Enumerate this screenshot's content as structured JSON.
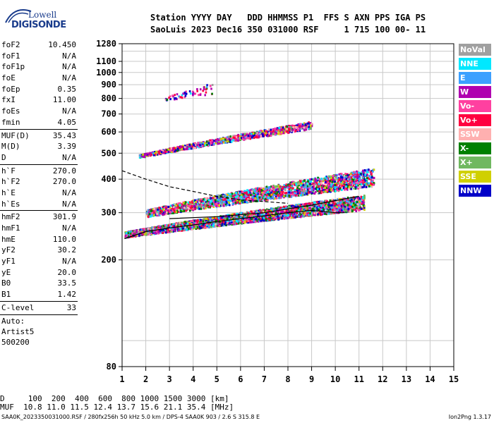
{
  "logo": {
    "line1": "Lowell",
    "line2": "DIGISONDE"
  },
  "header": {
    "line1": "Station YYYY DAY   DDD HHMMSS P1  FFS S AXN PPS IGA PS",
    "line2": "SaoLuis 2023 Dec16 350 031000 RSF     1 715 100 00- 11"
  },
  "params_group1": [
    {
      "name": "foF2",
      "value": "10.450"
    },
    {
      "name": "foF1",
      "value": "N/A"
    },
    {
      "name": "foF1p",
      "value": "N/A"
    },
    {
      "name": "foE",
      "value": "N/A"
    },
    {
      "name": "foEp",
      "value": "0.35"
    },
    {
      "name": "fxI",
      "value": "11.00"
    },
    {
      "name": "foEs",
      "value": "N/A"
    },
    {
      "name": "fmin",
      "value": "4.05"
    }
  ],
  "params_group2": [
    {
      "name": "MUF(D)",
      "value": "35.43"
    },
    {
      "name": "M(D)",
      "value": "3.39"
    },
    {
      "name": "D",
      "value": "N/A"
    }
  ],
  "params_group3": [
    {
      "name": "h`F",
      "value": "270.0"
    },
    {
      "name": "h`F2",
      "value": "270.0"
    },
    {
      "name": "h`E",
      "value": "N/A"
    },
    {
      "name": "h`Es",
      "value": "N/A"
    }
  ],
  "params_group4": [
    {
      "name": "hmF2",
      "value": "301.9"
    },
    {
      "name": "hmF1",
      "value": "N/A"
    },
    {
      "name": "hmE",
      "value": "110.0"
    },
    {
      "name": "yF2",
      "value": "30.2"
    },
    {
      "name": "yF1",
      "value": "N/A"
    },
    {
      "name": "yE",
      "value": "20.0"
    },
    {
      "name": "B0",
      "value": "33.5"
    },
    {
      "name": "B1",
      "value": "1.42"
    }
  ],
  "params_group5": [
    {
      "name": "C-level",
      "value": "33"
    }
  ],
  "autoscale": {
    "line1": "Auto:",
    "line2": "Artist5",
    "line3": "500200"
  },
  "legend": [
    {
      "label": "NoVal",
      "color": "#a0a0a0"
    },
    {
      "label": "NNE",
      "color": "#00e8ff"
    },
    {
      "label": "E",
      "color": "#3ca0ff"
    },
    {
      "label": "W",
      "color": "#b000b0"
    },
    {
      "label": "Vo-",
      "color": "#ff40a0"
    },
    {
      "label": "Vo+",
      "color": "#ff0040"
    },
    {
      "label": "SSW",
      "color": "#ffb0b0"
    },
    {
      "label": "X-",
      "color": "#008000"
    },
    {
      "label": "X+",
      "color": "#70b860"
    },
    {
      "label": "SSE",
      "color": "#d0d000"
    },
    {
      "label": "NNW",
      "color": "#0000c8"
    }
  ],
  "footer": {
    "line1": "D     100  200  400  600  800 1000 1500 3000 [km]",
    "line2": "MUF  10.8 11.0 11.5 12.4 13.7 15.6 21.1 35.4 [MHz]",
    "line3": "SAA0K_2023350031000.RSF / 280fx256h 50 kHz 5.0 km / DPS-4 SAA0K 903 / 2.6 S 315.8 E",
    "line4": "Ion2Png 1.3.17"
  },
  "chart_data": {
    "type": "scatter",
    "title": "",
    "xlabel": "",
    "ylabel": "",
    "xlim": [
      1,
      15
    ],
    "ylim": [
      80,
      1280
    ],
    "yscale": "log",
    "grid": true,
    "x_ticks": [
      "1",
      "2",
      "3",
      "4",
      "5",
      "6",
      "7",
      "8",
      "9",
      "10",
      "11",
      "12",
      "13",
      "14",
      "15"
    ],
    "y_ticks": [
      {
        "value": 80,
        "label": "80"
      },
      {
        "value": 200,
        "label": "200"
      },
      {
        "value": 300,
        "label": "300"
      },
      {
        "value": 400,
        "label": "400"
      },
      {
        "value": 500,
        "label": "500"
      },
      {
        "value": 600,
        "label": "600"
      },
      {
        "value": 700,
        "label": "700"
      },
      {
        "value": 800,
        "label": "800"
      },
      {
        "value": 900,
        "label": "900"
      },
      {
        "value": 1000,
        "label": "1000"
      },
      {
        "value": 1100,
        "label": "1100"
      },
      {
        "value": 1280,
        "label": "1280"
      }
    ],
    "y_gridlines": [
      100,
      200,
      300,
      400,
      500,
      600,
      700,
      800,
      900,
      1000,
      1100,
      1200
    ],
    "o_trace_clusters": [
      {
        "f_range": [
          1.1,
          11.2
        ],
        "h_start": 250,
        "h_end": 330,
        "spread": 30,
        "density": 6
      },
      {
        "f_range": [
          2.0,
          11.6
        ],
        "h_start": 300,
        "h_end": 410,
        "spread": 45,
        "density": 4
      }
    ],
    "x_trace_clusters": [
      {
        "f_range": [
          1.7,
          9.0
        ],
        "h_start": 490,
        "h_end": 640,
        "spread": 30,
        "density": 2.5
      },
      {
        "f_range": [
          2.8,
          4.8
        ],
        "h_start": 800,
        "h_end": 880,
        "spread": 60,
        "density": 0.5
      }
    ],
    "profile_solid": [
      [
        1.1,
        240
      ],
      [
        2,
        255
      ],
      [
        3,
        263
      ],
      [
        4,
        270
      ],
      [
        5,
        278
      ],
      [
        6,
        285
      ],
      [
        7,
        292
      ],
      [
        8,
        300
      ],
      [
        9,
        306
      ],
      [
        10,
        300
      ],
      [
        10.4,
        300
      ]
    ],
    "profile_solid_upper": [
      [
        3,
        285
      ],
      [
        5,
        290
      ],
      [
        7,
        300
      ],
      [
        9,
        320
      ],
      [
        10.4,
        338
      ],
      [
        11,
        345
      ]
    ],
    "profile_dashed": [
      [
        1,
        430
      ],
      [
        2,
        400
      ],
      [
        3,
        375
      ],
      [
        4,
        360
      ],
      [
        5,
        345
      ],
      [
        6,
        335
      ],
      [
        7,
        330
      ],
      [
        8,
        325
      ]
    ]
  }
}
